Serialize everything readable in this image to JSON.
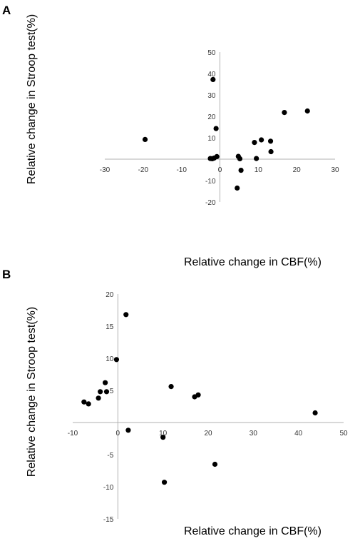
{
  "chart_data": [
    {
      "panel": "A",
      "type": "scatter",
      "xlabel": "Relative change in CBF(%)",
      "ylabel": "Relative change in Stroop test(%)",
      "xlim": [
        -30,
        30
      ],
      "ylim": [
        -20,
        50
      ],
      "xticks": [
        -30,
        -20,
        -10,
        0,
        10,
        20,
        30
      ],
      "yticks": [
        -20,
        -10,
        0,
        10,
        20,
        30,
        40,
        50
      ],
      "xtick_labels": [
        "-30",
        "-20",
        "-10",
        "0",
        "10",
        "20",
        "30"
      ],
      "ytick_labels": [
        "-20",
        "-10",
        "",
        "10",
        "20",
        "30",
        "40",
        "50"
      ],
      "grid": false,
      "points": [
        {
          "x": -19.5,
          "y": 9.2
        },
        {
          "x": -1.8,
          "y": 37.2
        },
        {
          "x": -1.0,
          "y": 14.3
        },
        {
          "x": -2.5,
          "y": 0.3
        },
        {
          "x": -2.0,
          "y": 0.2
        },
        {
          "x": -1.5,
          "y": 0.5
        },
        {
          "x": -0.8,
          "y": 1.2
        },
        {
          "x": 4.5,
          "y": -13.5
        },
        {
          "x": 4.8,
          "y": 1.3
        },
        {
          "x": 5.2,
          "y": 0.2
        },
        {
          "x": 5.5,
          "y": -5.2
        },
        {
          "x": 9.0,
          "y": 7.8
        },
        {
          "x": 9.5,
          "y": 0.3
        },
        {
          "x": 10.8,
          "y": 9.0
        },
        {
          "x": 13.2,
          "y": 8.4
        },
        {
          "x": 13.3,
          "y": 3.5
        },
        {
          "x": 16.8,
          "y": 21.8
        },
        {
          "x": 22.8,
          "y": 22.5
        }
      ]
    },
    {
      "panel": "B",
      "type": "scatter",
      "xlabel": "Relative change in CBF(%)",
      "ylabel": "Relative change in Stroop test(%)",
      "xlim": [
        -10,
        50
      ],
      "ylim": [
        -15,
        20
      ],
      "xticks": [
        -10,
        0,
        10,
        20,
        30,
        40,
        50
      ],
      "yticks": [
        -15,
        -10,
        -5,
        0,
        5,
        10,
        15,
        20
      ],
      "xtick_labels": [
        "-10",
        "0",
        "10",
        "20",
        "30",
        "40",
        "50"
      ],
      "ytick_labels": [
        "-15",
        "-10",
        "-5",
        "",
        "5",
        "10",
        "15",
        "20"
      ],
      "grid": false,
      "points": [
        {
          "x": -7.5,
          "y": 3.2
        },
        {
          "x": -6.5,
          "y": 2.9
        },
        {
          "x": -4.3,
          "y": 3.8
        },
        {
          "x": -3.9,
          "y": 4.8
        },
        {
          "x": -2.8,
          "y": 6.2
        },
        {
          "x": -2.5,
          "y": 4.8
        },
        {
          "x": -0.3,
          "y": 9.8
        },
        {
          "x": 1.8,
          "y": 16.8
        },
        {
          "x": 2.3,
          "y": -1.2
        },
        {
          "x": 10.0,
          "y": -2.3
        },
        {
          "x": 10.3,
          "y": -9.3
        },
        {
          "x": 11.8,
          "y": 5.6
        },
        {
          "x": 17.0,
          "y": 4.0
        },
        {
          "x": 17.8,
          "y": 4.3
        },
        {
          "x": 21.5,
          "y": -6.5
        },
        {
          "x": 43.7,
          "y": 1.5
        }
      ]
    }
  ],
  "panels": {
    "a": {
      "letter": "A"
    },
    "b": {
      "letter": "B"
    }
  }
}
